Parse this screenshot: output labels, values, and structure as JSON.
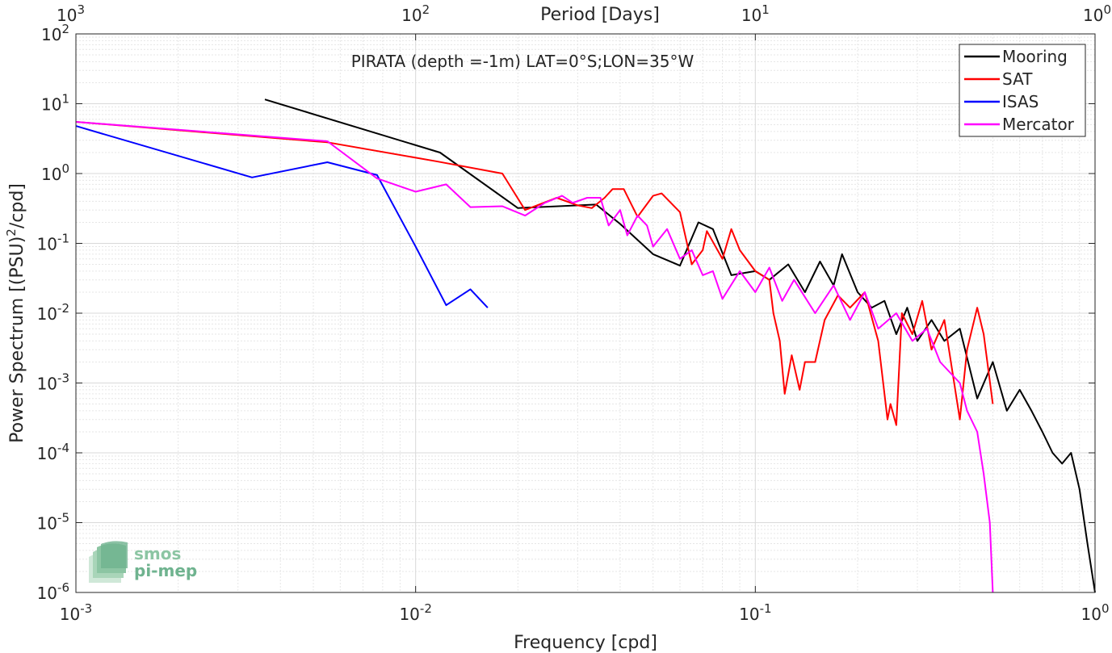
{
  "chart_data": {
    "type": "line",
    "title": "PIRATA (depth =-1m) LAT=0°S;LON=35°W",
    "xlabel": "Frequency [cpd]",
    "ylabel_main": "Power Spectrum [(PSU)",
    "ylabel_sup": "2",
    "ylabel_tail": "/cpd]",
    "top_axis_label": "Period [Days]",
    "x_scale": "log",
    "y_scale": "log",
    "xlim": [
      0.001,
      1
    ],
    "ylim": [
      1e-06,
      100
    ],
    "grid": true,
    "legend_position": "top-right",
    "x_ticks": [
      {
        "value": 0.001,
        "base": "10",
        "exp": "-3"
      },
      {
        "value": 0.01,
        "base": "10",
        "exp": "-2"
      },
      {
        "value": 0.1,
        "base": "10",
        "exp": "-1"
      },
      {
        "value": 1,
        "base": "10",
        "exp": "0"
      }
    ],
    "y_ticks": [
      {
        "value": 100,
        "base": "10",
        "exp": "2"
      },
      {
        "value": 10,
        "base": "10",
        "exp": "1"
      },
      {
        "value": 1,
        "base": "10",
        "exp": "0"
      },
      {
        "value": 0.1,
        "base": "10",
        "exp": "-1"
      },
      {
        "value": 0.01,
        "base": "10",
        "exp": "-2"
      },
      {
        "value": 0.001,
        "base": "10",
        "exp": "-3"
      },
      {
        "value": 0.0001,
        "base": "10",
        "exp": "-4"
      },
      {
        "value": 1e-05,
        "base": "10",
        "exp": "-5"
      },
      {
        "value": 1e-06,
        "base": "10",
        "exp": "-6"
      }
    ],
    "top_ticks": [
      {
        "value": 0.001,
        "base": "10",
        "exp": "3"
      },
      {
        "value": 0.01,
        "base": "10",
        "exp": "2"
      },
      {
        "value": 0.1,
        "base": "10",
        "exp": "1"
      },
      {
        "value": 1,
        "base": "10",
        "exp": "0"
      }
    ],
    "series": [
      {
        "name": "Mooring",
        "color": "#000000",
        "points": [
          [
            0.0036,
            11.5
          ],
          [
            0.0118,
            2.0
          ],
          [
            0.02,
            0.32
          ],
          [
            0.034,
            0.36
          ],
          [
            0.04,
            0.19
          ],
          [
            0.05,
            0.07
          ],
          [
            0.06,
            0.048
          ],
          [
            0.068,
            0.2
          ],
          [
            0.075,
            0.16
          ],
          [
            0.085,
            0.035
          ],
          [
            0.1,
            0.04
          ],
          [
            0.11,
            0.03
          ],
          [
            0.125,
            0.05
          ],
          [
            0.14,
            0.02
          ],
          [
            0.155,
            0.055
          ],
          [
            0.17,
            0.025
          ],
          [
            0.18,
            0.07
          ],
          [
            0.2,
            0.02
          ],
          [
            0.22,
            0.012
          ],
          [
            0.24,
            0.015
          ],
          [
            0.26,
            0.005
          ],
          [
            0.28,
            0.012
          ],
          [
            0.3,
            0.004
          ],
          [
            0.33,
            0.008
          ],
          [
            0.36,
            0.004
          ],
          [
            0.4,
            0.006
          ],
          [
            0.45,
            0.0006
          ],
          [
            0.5,
            0.002
          ],
          [
            0.55,
            0.0004
          ],
          [
            0.6,
            0.0008
          ],
          [
            0.65,
            0.0004
          ],
          [
            0.7,
            0.0002
          ],
          [
            0.75,
            0.0001
          ],
          [
            0.8,
            7e-05
          ],
          [
            0.85,
            0.0001
          ],
          [
            0.9,
            3e-05
          ],
          [
            0.95,
            5e-06
          ],
          [
            1.0,
            1e-06
          ]
        ]
      },
      {
        "name": "SAT",
        "color": "#ff0000",
        "points": [
          [
            0.001,
            5.5
          ],
          [
            0.0055,
            2.8
          ],
          [
            0.0115,
            1.5
          ],
          [
            0.018,
            1.0
          ],
          [
            0.021,
            0.3
          ],
          [
            0.026,
            0.45
          ],
          [
            0.03,
            0.35
          ],
          [
            0.033,
            0.32
          ],
          [
            0.036,
            0.45
          ],
          [
            0.038,
            0.6
          ],
          [
            0.041,
            0.6
          ],
          [
            0.045,
            0.24
          ],
          [
            0.05,
            0.48
          ],
          [
            0.053,
            0.52
          ],
          [
            0.06,
            0.28
          ],
          [
            0.065,
            0.05
          ],
          [
            0.07,
            0.08
          ],
          [
            0.072,
            0.15
          ],
          [
            0.08,
            0.06
          ],
          [
            0.085,
            0.16
          ],
          [
            0.09,
            0.08
          ],
          [
            0.1,
            0.04
          ],
          [
            0.11,
            0.03
          ],
          [
            0.113,
            0.01
          ],
          [
            0.118,
            0.004
          ],
          [
            0.122,
            0.0007
          ],
          [
            0.128,
            0.0025
          ],
          [
            0.135,
            0.0008
          ],
          [
            0.14,
            0.002
          ],
          [
            0.15,
            0.002
          ],
          [
            0.16,
            0.008
          ],
          [
            0.175,
            0.018
          ],
          [
            0.19,
            0.012
          ],
          [
            0.21,
            0.02
          ],
          [
            0.23,
            0.004
          ],
          [
            0.245,
            0.0003
          ],
          [
            0.25,
            0.0005
          ],
          [
            0.26,
            0.00025
          ],
          [
            0.27,
            0.01
          ],
          [
            0.29,
            0.005
          ],
          [
            0.31,
            0.015
          ],
          [
            0.33,
            0.003
          ],
          [
            0.36,
            0.008
          ],
          [
            0.4,
            0.0003
          ],
          [
            0.42,
            0.003
          ],
          [
            0.45,
            0.012
          ],
          [
            0.47,
            0.005
          ],
          [
            0.5,
            0.0005
          ]
        ]
      },
      {
        "name": "ISAS",
        "color": "#0000ff",
        "points": [
          [
            0.001,
            4.8
          ],
          [
            0.0033,
            0.88
          ],
          [
            0.0055,
            1.45
          ],
          [
            0.0077,
            0.95
          ],
          [
            0.01,
            0.09
          ],
          [
            0.0123,
            0.013
          ],
          [
            0.0145,
            0.022
          ],
          [
            0.0163,
            0.012
          ]
        ]
      },
      {
        "name": "Mercator",
        "color": "#ff00ff",
        "points": [
          [
            0.001,
            5.5
          ],
          [
            0.0055,
            2.9
          ],
          [
            0.0077,
            0.85
          ],
          [
            0.01,
            0.55
          ],
          [
            0.0123,
            0.7
          ],
          [
            0.0145,
            0.33
          ],
          [
            0.018,
            0.34
          ],
          [
            0.021,
            0.25
          ],
          [
            0.024,
            0.38
          ],
          [
            0.027,
            0.48
          ],
          [
            0.029,
            0.38
          ],
          [
            0.032,
            0.45
          ],
          [
            0.035,
            0.45
          ],
          [
            0.037,
            0.18
          ],
          [
            0.04,
            0.3
          ],
          [
            0.042,
            0.13
          ],
          [
            0.045,
            0.25
          ],
          [
            0.048,
            0.18
          ],
          [
            0.05,
            0.09
          ],
          [
            0.055,
            0.16
          ],
          [
            0.06,
            0.06
          ],
          [
            0.065,
            0.08
          ],
          [
            0.07,
            0.035
          ],
          [
            0.075,
            0.04
          ],
          [
            0.08,
            0.016
          ],
          [
            0.09,
            0.04
          ],
          [
            0.1,
            0.02
          ],
          [
            0.11,
            0.045
          ],
          [
            0.12,
            0.015
          ],
          [
            0.13,
            0.03
          ],
          [
            0.15,
            0.01
          ],
          [
            0.17,
            0.025
          ],
          [
            0.19,
            0.008
          ],
          [
            0.21,
            0.02
          ],
          [
            0.23,
            0.006
          ],
          [
            0.26,
            0.01
          ],
          [
            0.29,
            0.004
          ],
          [
            0.32,
            0.006
          ],
          [
            0.35,
            0.002
          ],
          [
            0.4,
            0.001
          ],
          [
            0.42,
            0.0004
          ],
          [
            0.45,
            0.0002
          ],
          [
            0.47,
            5e-05
          ],
          [
            0.49,
            1e-05
          ],
          [
            0.5,
            1e-06
          ]
        ]
      }
    ]
  },
  "logo": {
    "line1": "smos",
    "line2": "pi-mep",
    "color": "#6fb38f"
  }
}
